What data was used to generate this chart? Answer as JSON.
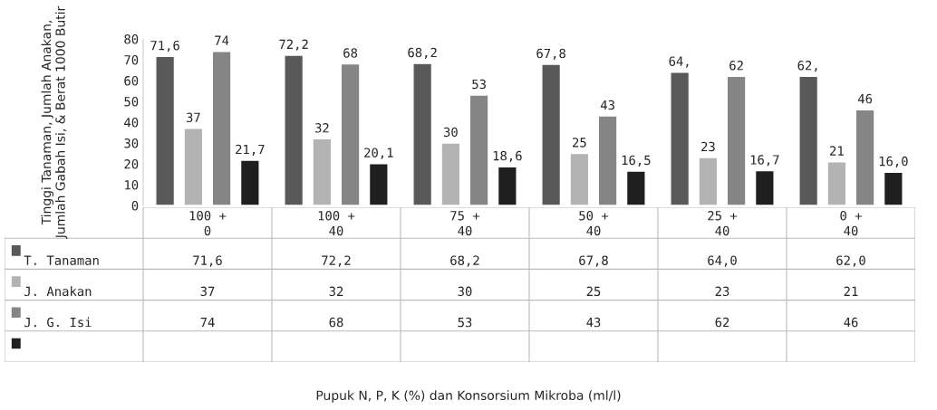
{
  "chart_data": {
    "type": "bar",
    "categories": [
      "100 + 0",
      "100 + 40",
      "75 + 40",
      "50 + 40",
      "25 + 40",
      "0 + 40"
    ],
    "series": [
      {
        "name": "T. Tanaman",
        "color": "#595959",
        "values": [
          71.6,
          72.2,
          68.2,
          67.8,
          64,
          62
        ],
        "value_labels": [
          "71,6",
          "72,2",
          "68,2",
          "67,8",
          "64,",
          "62,"
        ]
      },
      {
        "name": "J. Anakan",
        "color": "#b3b3b3",
        "values": [
          37,
          32,
          30,
          25,
          23,
          21
        ],
        "value_labels": [
          "37",
          "32",
          "30",
          "25",
          "23",
          "21"
        ]
      },
      {
        "name": "J. G. Isi",
        "color": "#858585",
        "values": [
          74,
          68,
          53,
          43,
          62,
          46
        ],
        "value_labels": [
          "74",
          "68",
          "53",
          "43",
          "62",
          "46"
        ]
      },
      {
        "color": "#1f1f1f",
        "values": [
          21.7,
          20.1,
          18.6,
          16.5,
          16.7,
          16.0
        ],
        "value_labels": [
          "21,7",
          "20,1",
          "18,6",
          "16,5",
          "16,7",
          "16,0"
        ]
      }
    ],
    "ylabel": "Tinggi Tanaman, Jumlah Anakan, Jumlah Gabah Isi, & Berat 1000 Butir",
    "annotations": [
      "71,6",
      "72,2",
      "68,2",
      "67,8",
      "64,0",
      "62,0",
      "37",
      "32",
      "30",
      "25",
      "23",
      "21",
      "74",
      "68",
      "53",
      "43",
      "62",
      "46",
      "Pupuk N, P, K (%) dan Konsorsium Mikroba (ml/l)"
    ],
    "ylim": [
      0,
      80
    ],
    "yticks": [
      0,
      10,
      20,
      30,
      40,
      50,
      60,
      70,
      80
    ],
    "grid": false,
    "legend": "bottom"
  }
}
